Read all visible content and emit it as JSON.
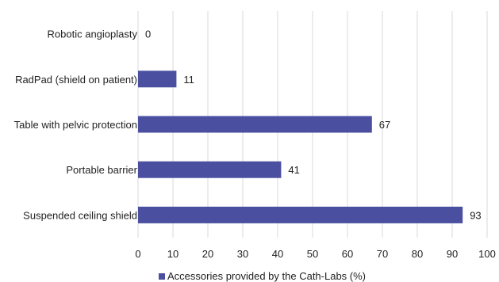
{
  "chart_data": {
    "type": "bar",
    "orientation": "horizontal",
    "categories": [
      "Robotic angioplasty",
      "RadPad (shield on patient)",
      "Table with pelvic protection",
      "Portable barrier",
      "Suspended ceiling shield"
    ],
    "series": [
      {
        "name": "Accessories provided by the Cath-Labs (%)",
        "values": [
          0,
          11,
          67,
          41,
          93
        ]
      }
    ],
    "xlim": [
      0,
      100
    ],
    "xticks": [
      0,
      10,
      20,
      30,
      40,
      50,
      60,
      70,
      80,
      90,
      100
    ],
    "xlabel": "",
    "ylabel": "",
    "title": "",
    "grid": "vertical",
    "legend_position": "bottom",
    "colors": {
      "bar": "#4a4fa0",
      "grid": "#d9d9d9"
    }
  }
}
